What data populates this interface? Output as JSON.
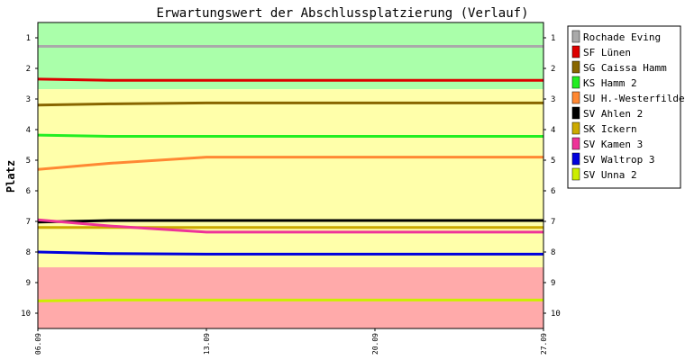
{
  "chart_data": {
    "type": "line",
    "title": "Erwartungswert der Abschlussplatzierung (Verlauf)",
    "ylabel": "Platz",
    "xlabel": "",
    "ylim": [
      0.5,
      10.5
    ],
    "y_inverted": true,
    "y_ticks": [
      "1",
      "2",
      "3",
      "4",
      "5",
      "6",
      "7",
      "8",
      "9",
      "10"
    ],
    "x_ticks": [
      "06.09",
      "13.09",
      "20.09",
      "27.09"
    ],
    "x": [
      "06.09",
      "09.09",
      "13.09",
      "20.09",
      "27.09"
    ],
    "zones": [
      {
        "from": 0.5,
        "to": 2.68,
        "color": "#aaffaa"
      },
      {
        "from": 2.68,
        "to": 8.5,
        "color": "#ffffaa"
      },
      {
        "from": 8.5,
        "to": 10.5,
        "color": "#ffaaaa"
      }
    ],
    "legend_position": "right",
    "grid": false,
    "series": [
      {
        "name": "Rochade Eving",
        "color": "#aaaaaa",
        "values": [
          1.28,
          1.28,
          1.28,
          1.28,
          1.28
        ]
      },
      {
        "name": "SF Lünen",
        "color": "#dd0000",
        "values": [
          2.35,
          2.39,
          2.39,
          2.39,
          2.39
        ]
      },
      {
        "name": "SG Caissa Hamm",
        "color": "#886600",
        "values": [
          3.2,
          3.16,
          3.13,
          3.13,
          3.13
        ]
      },
      {
        "name": "KS Hamm 2",
        "color": "#22ee22",
        "values": [
          4.18,
          4.22,
          4.22,
          4.22,
          4.22
        ]
      },
      {
        "name": "SU H.-Westerfilde",
        "color": "#ff8833",
        "values": [
          5.3,
          5.1,
          4.9,
          4.9,
          4.9
        ]
      },
      {
        "name": "SV Ahlen 2",
        "color": "#000000",
        "values": [
          7.02,
          6.97,
          6.97,
          6.97,
          6.97
        ]
      },
      {
        "name": "SK Ickern",
        "color": "#ccaa00",
        "values": [
          7.2,
          7.2,
          7.2,
          7.2,
          7.2
        ]
      },
      {
        "name": "SV Kamen 3",
        "color": "#ee3399",
        "values": [
          6.95,
          7.15,
          7.35,
          7.35,
          7.35
        ]
      },
      {
        "name": "SV Waltrop 3",
        "color": "#0000dd",
        "values": [
          8.0,
          8.05,
          8.07,
          8.07,
          8.07
        ]
      },
      {
        "name": "SV Unna 2",
        "color": "#ccee00",
        "values": [
          9.6,
          9.57,
          9.57,
          9.57,
          9.57
        ]
      }
    ]
  }
}
